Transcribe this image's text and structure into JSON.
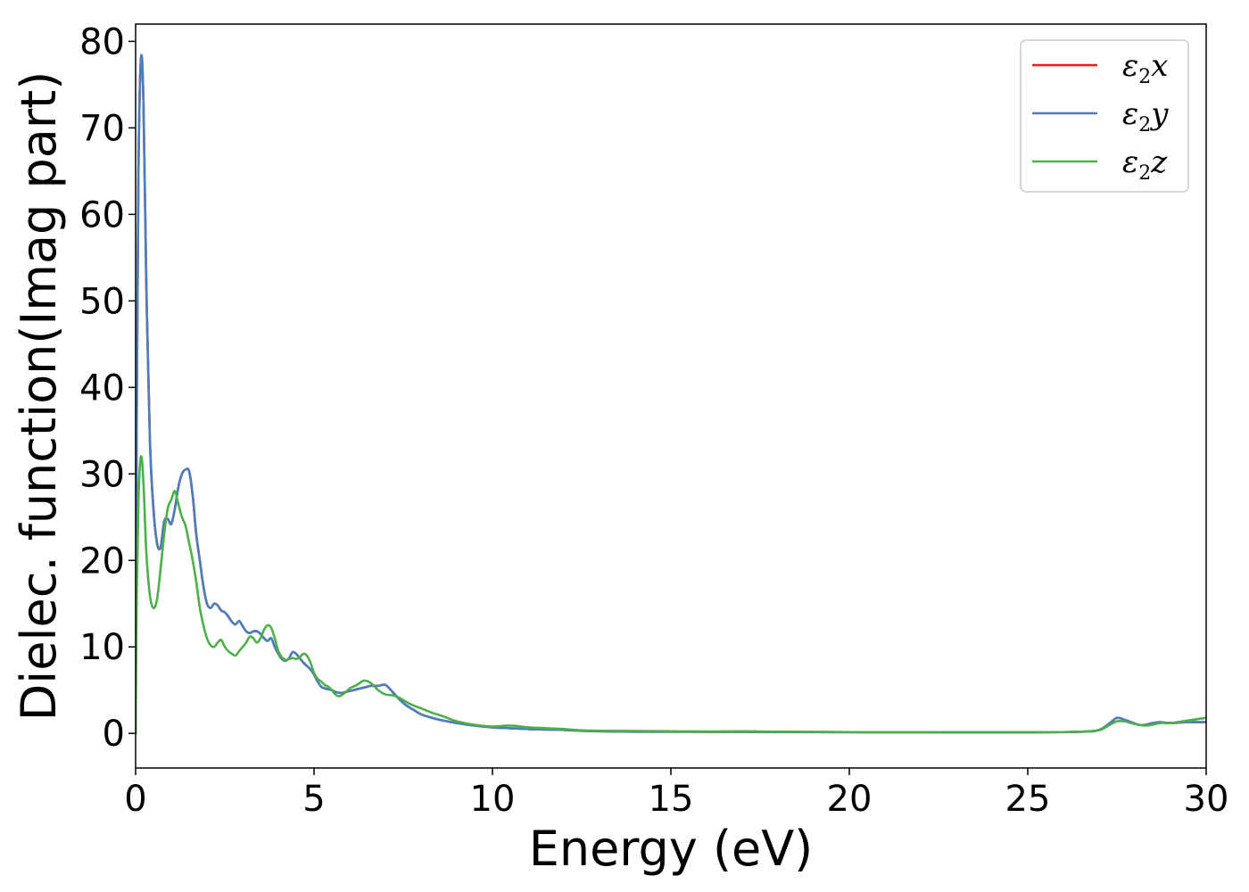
{
  "chart_data": {
    "type": "line",
    "title": "",
    "xlabel": "Energy (eV)",
    "ylabel": "Dielec. function(Imag part)",
    "xlim": [
      0,
      30
    ],
    "ylim": [
      -4,
      82
    ],
    "xticks": [
      0,
      5,
      10,
      15,
      20,
      25,
      30
    ],
    "yticks": [
      0,
      10,
      20,
      30,
      40,
      50,
      60,
      70,
      80
    ],
    "grid": false,
    "legend_position": "top-right",
    "series": [
      {
        "name": "ε2x",
        "legend_symbol": "ε",
        "legend_sub": "2",
        "legend_var": "x",
        "color": "#e41a1c",
        "x": [
          0,
          0.03,
          0.08,
          0.15,
          0.22,
          0.3,
          0.4,
          0.5,
          0.6,
          0.7,
          0.8,
          0.9,
          1.0,
          1.1,
          1.2,
          1.3,
          1.4,
          1.5,
          1.6,
          1.7,
          1.8,
          1.9,
          2.0,
          2.1,
          2.2,
          2.3,
          2.4,
          2.5,
          2.6,
          2.7,
          2.8,
          2.9,
          3.0,
          3.1,
          3.2,
          3.3,
          3.4,
          3.5,
          3.6,
          3.7,
          3.8,
          3.9,
          4.0,
          4.1,
          4.2,
          4.3,
          4.4,
          4.5,
          4.6,
          4.7,
          4.8,
          4.9,
          5.0,
          5.1,
          5.2,
          5.3,
          5.4,
          5.5,
          5.6,
          5.7,
          5.8,
          5.9,
          6.0,
          6.2,
          6.4,
          6.6,
          6.8,
          7.0,
          7.2,
          7.4,
          7.6,
          7.8,
          8.0,
          8.3,
          8.6,
          9.0,
          9.5,
          10.0,
          10.5,
          11.0,
          11.5,
          12.0,
          12.5,
          13,
          14,
          15,
          16,
          17,
          18,
          19,
          20,
          21,
          22,
          23,
          24,
          25,
          26,
          26.5,
          26.9,
          27.1,
          27.3,
          27.5,
          27.7,
          27.9,
          28.1,
          28.3,
          28.5,
          28.7,
          29.0,
          29.5,
          30.0
        ],
        "y": [
          0,
          35,
          65,
          78,
          73,
          52,
          34,
          26,
          22,
          21.5,
          24.5,
          24.8,
          24.2,
          26,
          28.5,
          30,
          30.5,
          30.3,
          27.5,
          23,
          20,
          17,
          15,
          14.5,
          15,
          14.8,
          14.2,
          14,
          13.5,
          12.9,
          12.6,
          13,
          12.4,
          11.8,
          11.6,
          11.8,
          11.8,
          11.5,
          11,
          10.7,
          11,
          10,
          9.2,
          8.6,
          8.4,
          8.7,
          9.4,
          9.2,
          8.7,
          8.2,
          7.8,
          7.4,
          6.8,
          6,
          5.4,
          5.2,
          5.1,
          5.0,
          4.8,
          4.7,
          4.7,
          4.8,
          4.9,
          5.1,
          5.3,
          5.5,
          5.5,
          5.6,
          4.8,
          3.9,
          3.2,
          2.7,
          2.2,
          1.8,
          1.5,
          1.2,
          0.9,
          0.7,
          0.6,
          0.5,
          0.45,
          0.4,
          0.3,
          0.25,
          0.2,
          0.2,
          0.18,
          0.18,
          0.16,
          0.15,
          0.14,
          0.13,
          0.13,
          0.12,
          0.12,
          0.12,
          0.15,
          0.2,
          0.3,
          0.6,
          1.2,
          1.8,
          1.6,
          1.3,
          1.0,
          1.0,
          1.2,
          1.3,
          1.2,
          1.3,
          1.3
        ]
      },
      {
        "name": "ε2y",
        "legend_symbol": "ε",
        "legend_sub": "2",
        "legend_var": "y",
        "color": "#4a7fbf",
        "x": [
          0,
          0.03,
          0.08,
          0.15,
          0.22,
          0.3,
          0.4,
          0.5,
          0.6,
          0.7,
          0.8,
          0.9,
          1.0,
          1.1,
          1.2,
          1.3,
          1.4,
          1.5,
          1.6,
          1.7,
          1.8,
          1.9,
          2.0,
          2.1,
          2.2,
          2.3,
          2.4,
          2.5,
          2.6,
          2.7,
          2.8,
          2.9,
          3.0,
          3.1,
          3.2,
          3.3,
          3.4,
          3.5,
          3.6,
          3.7,
          3.8,
          3.9,
          4.0,
          4.1,
          4.2,
          4.3,
          4.4,
          4.5,
          4.6,
          4.7,
          4.8,
          4.9,
          5.0,
          5.1,
          5.2,
          5.3,
          5.4,
          5.5,
          5.6,
          5.7,
          5.8,
          5.9,
          6.0,
          6.2,
          6.4,
          6.6,
          6.8,
          7.0,
          7.2,
          7.4,
          7.6,
          7.8,
          8.0,
          8.3,
          8.6,
          9.0,
          9.5,
          10.0,
          10.5,
          11.0,
          11.5,
          12.0,
          12.5,
          13,
          14,
          15,
          16,
          17,
          18,
          19,
          20,
          21,
          22,
          23,
          24,
          25,
          26,
          26.5,
          26.9,
          27.1,
          27.3,
          27.5,
          27.7,
          27.9,
          28.1,
          28.3,
          28.5,
          28.7,
          29.0,
          29.5,
          30.0
        ],
        "y": [
          0,
          35,
          65,
          78,
          73,
          52,
          34,
          26,
          22,
          21.5,
          24.5,
          24.8,
          24.2,
          26,
          28.5,
          30,
          30.5,
          30.3,
          27.5,
          23,
          20,
          17,
          15,
          14.5,
          15,
          14.8,
          14.2,
          14,
          13.5,
          12.9,
          12.6,
          13,
          12.4,
          11.8,
          11.6,
          11.8,
          11.8,
          11.5,
          11,
          10.7,
          11,
          10,
          9.2,
          8.6,
          8.4,
          8.7,
          9.4,
          9.2,
          8.7,
          8.2,
          7.8,
          7.4,
          6.8,
          6,
          5.4,
          5.2,
          5.1,
          5.0,
          4.8,
          4.7,
          4.7,
          4.8,
          4.9,
          5.1,
          5.3,
          5.5,
          5.5,
          5.6,
          4.8,
          3.9,
          3.2,
          2.7,
          2.2,
          1.8,
          1.5,
          1.2,
          0.9,
          0.7,
          0.6,
          0.5,
          0.45,
          0.4,
          0.3,
          0.25,
          0.2,
          0.2,
          0.18,
          0.18,
          0.16,
          0.15,
          0.14,
          0.13,
          0.13,
          0.12,
          0.12,
          0.12,
          0.15,
          0.2,
          0.3,
          0.6,
          1.2,
          1.8,
          1.6,
          1.3,
          1.0,
          1.0,
          1.2,
          1.3,
          1.2,
          1.3,
          1.3
        ]
      },
      {
        "name": "ε2z",
        "legend_symbol": "ε",
        "legend_sub": "2",
        "legend_var": "z",
        "color": "#4daf4a",
        "x": [
          0,
          0.03,
          0.08,
          0.15,
          0.22,
          0.3,
          0.4,
          0.5,
          0.6,
          0.7,
          0.8,
          0.9,
          1.0,
          1.1,
          1.2,
          1.3,
          1.4,
          1.5,
          1.6,
          1.7,
          1.8,
          1.9,
          2.0,
          2.1,
          2.2,
          2.3,
          2.4,
          2.5,
          2.6,
          2.7,
          2.8,
          2.9,
          3.0,
          3.1,
          3.2,
          3.3,
          3.4,
          3.5,
          3.6,
          3.7,
          3.8,
          3.9,
          4.0,
          4.1,
          4.2,
          4.3,
          4.4,
          4.5,
          4.6,
          4.7,
          4.8,
          4.9,
          5.0,
          5.1,
          5.2,
          5.3,
          5.4,
          5.5,
          5.6,
          5.7,
          5.8,
          5.9,
          6.0,
          6.2,
          6.4,
          6.6,
          6.8,
          7.0,
          7.2,
          7.4,
          7.6,
          7.8,
          8.0,
          8.3,
          8.6,
          9.0,
          9.5,
          10.0,
          10.5,
          11.0,
          11.5,
          12.0,
          12.5,
          13,
          14,
          15,
          16,
          17,
          18,
          19,
          20,
          21,
          22,
          23,
          24,
          25,
          26,
          26.5,
          26.9,
          27.1,
          27.3,
          27.5,
          27.7,
          27.9,
          28.1,
          28.3,
          28.5,
          28.7,
          29.0,
          29.5,
          30.0
        ],
        "y": [
          0,
          15,
          27,
          32,
          29,
          21,
          16,
          14.5,
          15.5,
          19,
          23,
          26,
          27,
          28,
          26.5,
          25,
          24,
          22,
          20,
          17.5,
          14.5,
          12.5,
          11,
          10.2,
          10,
          10.5,
          10.8,
          10,
          9.5,
          9.2,
          9,
          9.5,
          10,
          10.5,
          11.2,
          11,
          10.5,
          11,
          12,
          12.5,
          12.2,
          11,
          9.5,
          8.8,
          8.5,
          8.6,
          8.7,
          8.6,
          8.8,
          9.2,
          9,
          8.2,
          7,
          6.3,
          6,
          5.6,
          5.4,
          5,
          4.5,
          4.3,
          4.5,
          4.8,
          5.2,
          5.6,
          6.1,
          5.8,
          5,
          4.5,
          4.4,
          4.1,
          3.6,
          3.2,
          2.9,
          2.4,
          2.0,
          1.4,
          1.0,
          0.8,
          0.9,
          0.7,
          0.6,
          0.5,
          0.35,
          0.3,
          0.28,
          0.25,
          0.22,
          0.25,
          0.2,
          0.18,
          0.15,
          0.14,
          0.14,
          0.13,
          0.13,
          0.12,
          0.15,
          0.2,
          0.3,
          0.5,
          1.0,
          1.4,
          1.4,
          1.2,
          1.0,
          0.9,
          1.0,
          1.2,
          1.2,
          1.5,
          1.8
        ]
      }
    ]
  }
}
